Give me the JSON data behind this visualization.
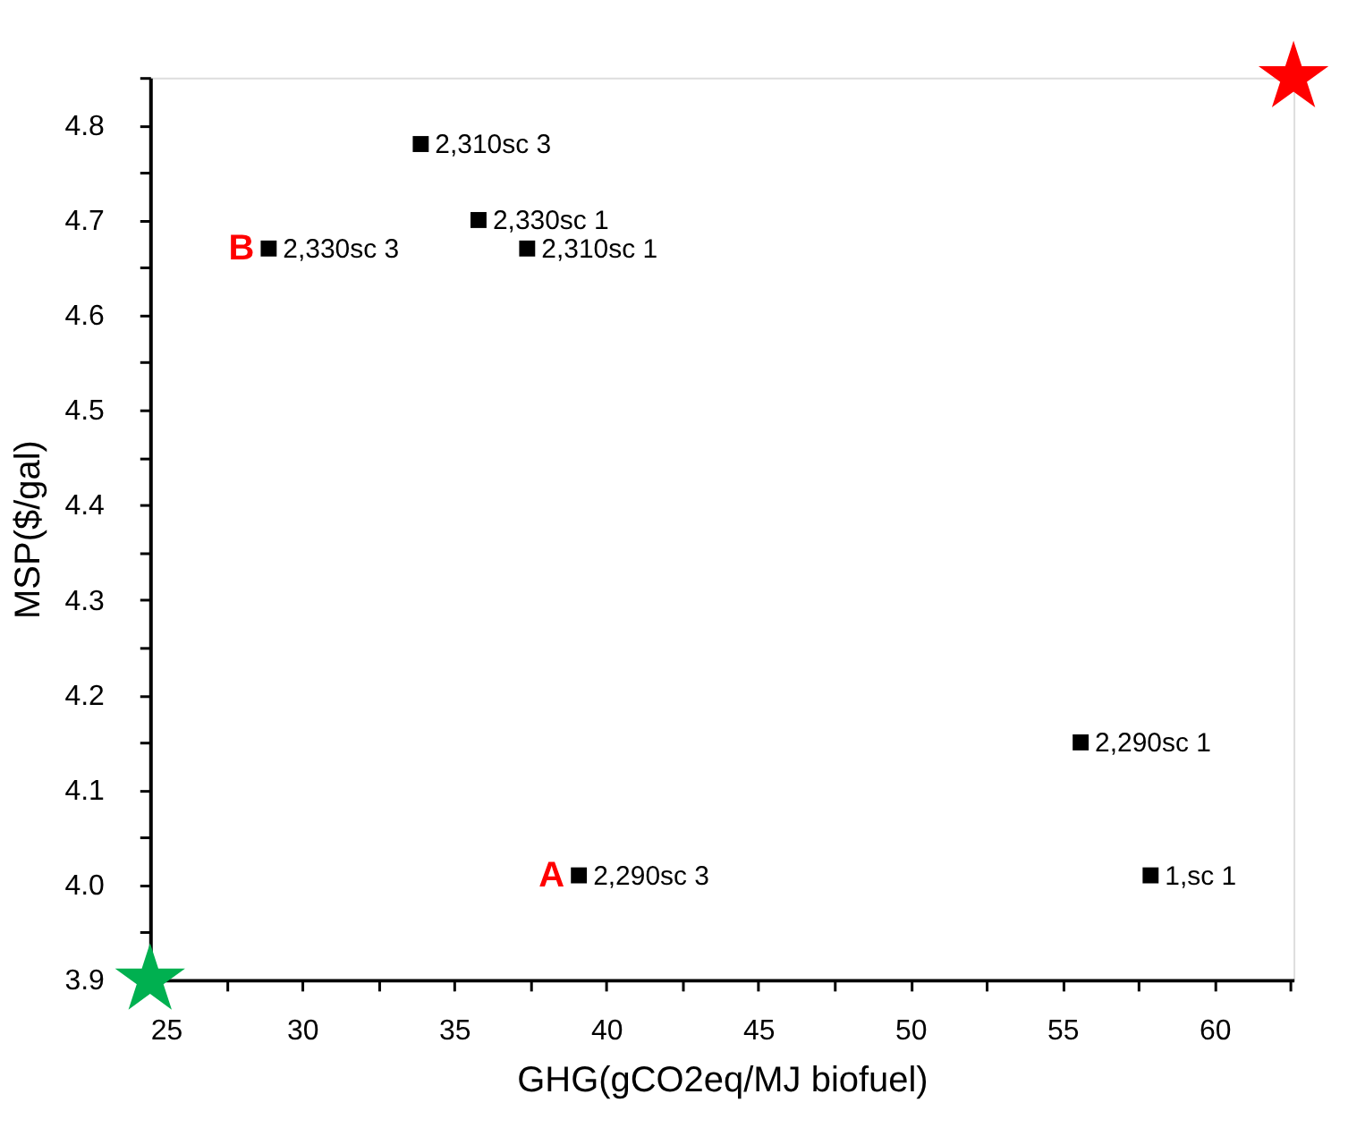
{
  "chart_data": {
    "type": "scatter",
    "xlabel": "GHG(gCO2eq/MJ biofuel)",
    "ylabel": "MSP($/gal)",
    "xlim": [
      25,
      62.6
    ],
    "ylim": [
      3.9,
      4.85
    ],
    "xticks": [
      25,
      {
        "value": 27.5,
        "label": null
      },
      30,
      {
        "value": 32.5,
        "label": null
      },
      35,
      {
        "value": 37.5,
        "label": null
      },
      40,
      {
        "value": 42.5,
        "label": null
      },
      45,
      {
        "value": 47.5,
        "label": null
      },
      50,
      {
        "value": 52.5,
        "label": null
      },
      55,
      {
        "value": 57.5,
        "label": null
      },
      60,
      {
        "value": 62.5,
        "label": null
      }
    ],
    "yticks": [
      {
        "value": 3.9,
        "label": "3.9"
      },
      {
        "value": 3.95,
        "label": null
      },
      {
        "value": 4.0,
        "label": "4.0"
      },
      {
        "value": 4.05,
        "label": null
      },
      4.1,
      {
        "value": 4.15,
        "label": null
      },
      4.2,
      {
        "value": 4.25,
        "label": null
      },
      4.3,
      {
        "value": 4.35,
        "label": null
      },
      4.4,
      {
        "value": 4.45,
        "label": null
      },
      4.5,
      {
        "value": 4.55,
        "label": null
      },
      4.6,
      {
        "value": 4.65,
        "label": null
      },
      4.7,
      {
        "value": 4.75,
        "label": null
      },
      4.8,
      {
        "value": 4.85,
        "label": null
      }
    ],
    "grid": false,
    "series": [
      {
        "marker": "square",
        "color": "#000000",
        "x": [
          33.9,
          35.8,
          28.9,
          37.4,
          55.6,
          39.1,
          57.9
        ],
        "values": [
          4.78,
          4.7,
          4.67,
          4.67,
          4.15,
          4.01,
          4.01
        ],
        "value_labels": [
          "2,310sc 3",
          "2,330sc 1",
          "2,330sc 3",
          "2,310sc 1",
          "2,290sc 1",
          "2,290sc 3",
          "1,sc 1"
        ]
      },
      {
        "marker": "star",
        "color": "#00b050",
        "x": [
          25
        ],
        "values": [
          3.9
        ]
      },
      {
        "marker": "star",
        "color": "#ff0000",
        "x": [
          62.6
        ],
        "values": [
          4.85
        ]
      }
    ],
    "annotations": [
      {
        "text": "A",
        "x": 39.1,
        "y": 4.01
      },
      {
        "text": "B",
        "x": 28.9,
        "y": 4.67
      }
    ]
  }
}
